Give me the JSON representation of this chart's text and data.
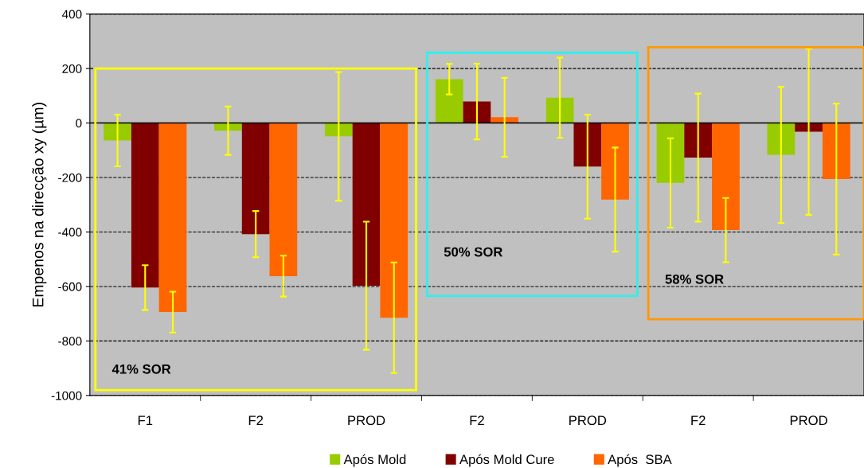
{
  "chart_data": {
    "type": "bar",
    "ylabel": "Empenos na direcção xy (µm)",
    "categories": [
      "F1",
      "F2",
      "PROD",
      "F2",
      "PROD",
      "F2",
      "PROD"
    ],
    "series": [
      {
        "name": "Após Mold",
        "color": "#99cc00",
        "values": [
          -64,
          -28,
          -49,
          161,
          93,
          -220,
          -117
        ],
        "errors": [
          95,
          89,
          236,
          56,
          147,
          164,
          250
        ]
      },
      {
        "name": "Após Mold Cure",
        "color": "#800000",
        "values": [
          -604,
          -408,
          -597,
          79,
          -160,
          -127,
          -32
        ],
        "errors": [
          82,
          85,
          235,
          139,
          191,
          235,
          305
        ]
      },
      {
        "name": "Após  SBA",
        "color": "#ff6600",
        "values": [
          -694,
          -562,
          -715,
          21,
          -281,
          -393,
          -206
        ],
        "errors": [
          75,
          75,
          203,
          145,
          191,
          118,
          277
        ]
      }
    ],
    "ylim": [
      -1000,
      400
    ],
    "yticks": [
      -1000,
      -800,
      -600,
      -400,
      -200,
      0,
      200,
      400
    ],
    "grid": "y",
    "legend": "bottom",
    "annotations": [
      "41% SOR",
      "50% SOR",
      "58% SOR"
    ]
  }
}
